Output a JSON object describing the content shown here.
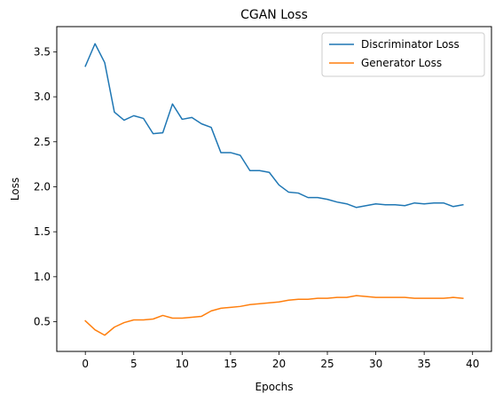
{
  "chart_data": {
    "type": "line",
    "title": "CGAN Loss",
    "xlabel": "Epochs",
    "ylabel": "Loss",
    "xlim": [
      -2.95,
      41.95
    ],
    "ylim": [
      0.17,
      3.78
    ],
    "xticks": [
      0,
      5,
      10,
      15,
      20,
      25,
      30,
      35,
      40
    ],
    "yticks": [
      0.5,
      1.0,
      1.5,
      2.0,
      2.5,
      3.0,
      3.5
    ],
    "xtick_labels": [
      "0",
      "5",
      "10",
      "15",
      "20",
      "25",
      "30",
      "35",
      "40"
    ],
    "ytick_labels": [
      "0.5",
      "1.0",
      "1.5",
      "2.0",
      "2.5",
      "3.0",
      "3.5"
    ],
    "grid": false,
    "legend_position": "top-right",
    "x": [
      0,
      1,
      2,
      3,
      4,
      5,
      6,
      7,
      8,
      9,
      10,
      11,
      12,
      13,
      14,
      15,
      16,
      17,
      18,
      19,
      20,
      21,
      22,
      23,
      24,
      25,
      26,
      27,
      28,
      29,
      30,
      31,
      32,
      33,
      34,
      35,
      36,
      37,
      38,
      39
    ],
    "series": [
      {
        "name": "Discriminator Loss",
        "color": "#1f77b4",
        "values": [
          3.34,
          3.59,
          3.38,
          2.83,
          2.74,
          2.79,
          2.76,
          2.59,
          2.6,
          2.92,
          2.75,
          2.77,
          2.7,
          2.66,
          2.38,
          2.38,
          2.35,
          2.18,
          2.18,
          2.16,
          2.02,
          1.94,
          1.93,
          1.88,
          1.88,
          1.86,
          1.83,
          1.81,
          1.77,
          1.79,
          1.81,
          1.8,
          1.8,
          1.79,
          1.82,
          1.81,
          1.82,
          1.82,
          1.78,
          1.8
        ]
      },
      {
        "name": "Generator Loss",
        "color": "#ff7f0e",
        "values": [
          0.51,
          0.41,
          0.35,
          0.44,
          0.49,
          0.52,
          0.52,
          0.53,
          0.57,
          0.54,
          0.54,
          0.55,
          0.56,
          0.62,
          0.65,
          0.66,
          0.67,
          0.69,
          0.7,
          0.71,
          0.72,
          0.74,
          0.75,
          0.75,
          0.76,
          0.76,
          0.77,
          0.77,
          0.79,
          0.78,
          0.77,
          0.77,
          0.77,
          0.77,
          0.76,
          0.76,
          0.76,
          0.76,
          0.77,
          0.76
        ]
      }
    ]
  }
}
